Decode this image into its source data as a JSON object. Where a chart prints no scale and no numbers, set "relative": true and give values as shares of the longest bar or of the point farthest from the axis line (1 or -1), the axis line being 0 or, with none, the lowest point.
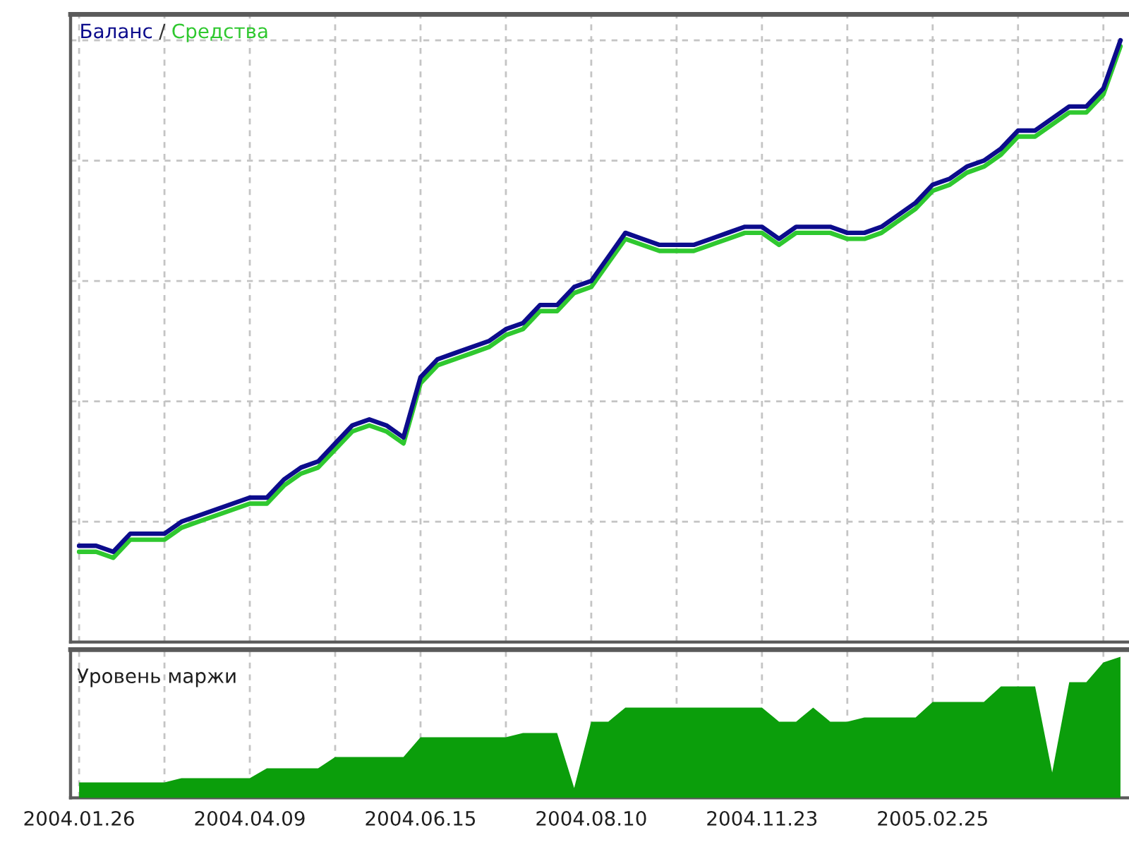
{
  "chart_data": [
    {
      "type": "line",
      "relative": true,
      "legend": "top left",
      "grid": true,
      "tick_labels": false,
      "annotations": [
        "/"
      ],
      "categories": [
        "2004.01.26",
        null,
        null,
        null,
        null,
        null,
        null,
        null,
        null,
        null,
        "2004.04.09",
        null,
        null,
        null,
        null,
        null,
        null,
        null,
        null,
        null,
        "2004.06.15",
        null,
        null,
        null,
        null,
        null,
        null,
        null,
        null,
        null,
        "2004.08.10",
        null,
        null,
        null,
        null,
        null,
        null,
        null,
        null,
        null,
        "2004.11.23",
        null,
        null,
        null,
        null,
        null,
        null,
        null,
        null,
        null,
        "2005.02.25",
        null,
        null,
        null,
        null,
        null,
        null,
        null,
        null,
        null,
        null,
        null
      ],
      "series": [
        {
          "name": "Баланс",
          "color": "#0c0c8c",
          "values": [
            0.16,
            0.16,
            0.15,
            0.18,
            0.18,
            0.18,
            0.2,
            0.21,
            0.22,
            0.23,
            0.24,
            0.24,
            0.27,
            0.29,
            0.3,
            0.33,
            0.36,
            0.37,
            0.36,
            0.34,
            0.44,
            0.47,
            0.48,
            0.49,
            0.5,
            0.52,
            0.53,
            0.56,
            0.56,
            0.59,
            0.6,
            0.64,
            0.68,
            0.67,
            0.66,
            0.66,
            0.66,
            0.67,
            0.68,
            0.69,
            0.69,
            0.67,
            0.69,
            0.69,
            0.69,
            0.68,
            0.68,
            0.69,
            0.71,
            0.73,
            0.76,
            0.77,
            0.79,
            0.8,
            0.82,
            0.85,
            0.85,
            0.87,
            0.89,
            0.89,
            0.92,
            1.0
          ]
        },
        {
          "name": "Средства",
          "color": "#2fc82f",
          "values": [
            0.15,
            0.15,
            0.14,
            0.17,
            0.17,
            0.17,
            0.19,
            0.2,
            0.21,
            0.22,
            0.23,
            0.23,
            0.26,
            0.28,
            0.29,
            0.32,
            0.35,
            0.36,
            0.35,
            0.33,
            0.43,
            0.46,
            0.47,
            0.48,
            0.49,
            0.51,
            0.52,
            0.55,
            0.55,
            0.58,
            0.59,
            0.63,
            0.67,
            0.66,
            0.65,
            0.65,
            0.65,
            0.66,
            0.67,
            0.68,
            0.68,
            0.66,
            0.68,
            0.68,
            0.68,
            0.67,
            0.67,
            0.68,
            0.7,
            0.72,
            0.75,
            0.76,
            0.78,
            0.79,
            0.81,
            0.84,
            0.84,
            0.86,
            0.88,
            0.88,
            0.91,
            0.99
          ]
        }
      ]
    },
    {
      "type": "area",
      "relative": true,
      "title": "Уровень маржи",
      "grid": "x",
      "tick_labels": "x",
      "categories": [
        "2004.01.26",
        null,
        null,
        null,
        null,
        null,
        null,
        null,
        null,
        null,
        "2004.04.09",
        null,
        null,
        null,
        null,
        null,
        null,
        null,
        null,
        null,
        "2004.06.15",
        null,
        null,
        null,
        null,
        null,
        null,
        null,
        null,
        null,
        "2004.08.10",
        null,
        null,
        null,
        null,
        null,
        null,
        null,
        null,
        null,
        "2004.11.23",
        null,
        null,
        null,
        null,
        null,
        null,
        null,
        null,
        null,
        "2005.02.25",
        null,
        null,
        null,
        null,
        null,
        null,
        null,
        null,
        null,
        null,
        null
      ],
      "series": [
        {
          "color": "#0b9e0b",
          "values": [
            0.11,
            0.11,
            0.11,
            0.11,
            0.11,
            0.11,
            0.14,
            0.14,
            0.14,
            0.14,
            0.14,
            0.21,
            0.21,
            0.21,
            0.21,
            0.29,
            0.29,
            0.29,
            0.29,
            0.29,
            0.43,
            0.43,
            0.43,
            0.43,
            0.43,
            0.43,
            0.46,
            0.46,
            0.46,
            0.07,
            0.54,
            0.54,
            0.64,
            0.64,
            0.64,
            0.64,
            0.64,
            0.64,
            0.64,
            0.64,
            0.64,
            0.54,
            0.54,
            0.64,
            0.54,
            0.54,
            0.57,
            0.57,
            0.57,
            0.57,
            0.68,
            0.68,
            0.68,
            0.68,
            0.79,
            0.79,
            0.79,
            0.18,
            0.82,
            0.82,
            0.96,
            1.0
          ]
        }
      ]
    }
  ]
}
